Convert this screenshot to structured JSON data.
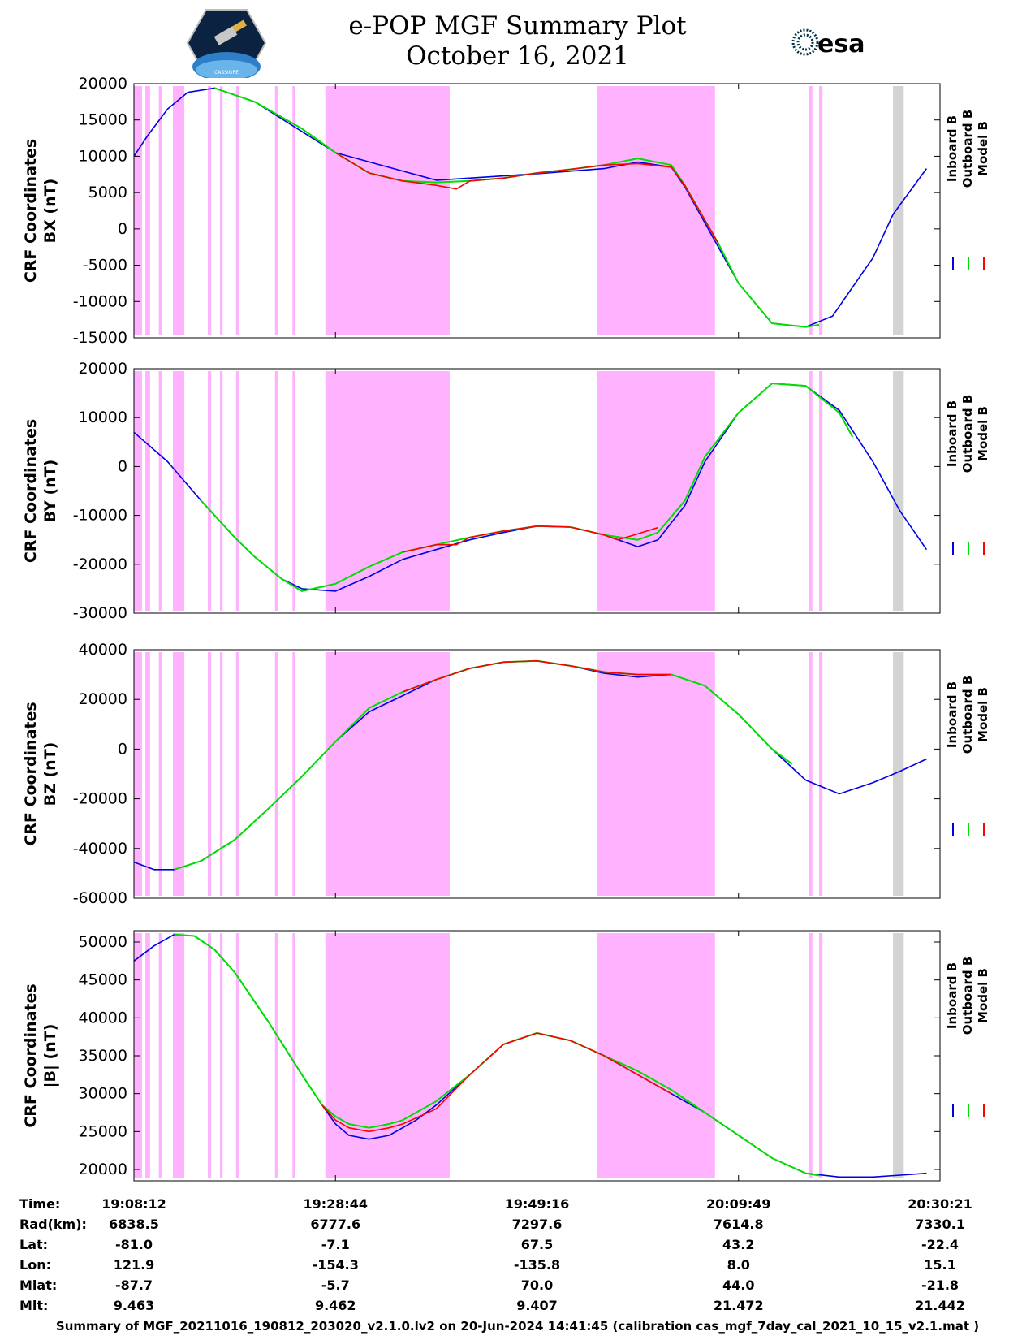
{
  "header": {
    "title_line1": "e-POP MGF Summary Plot",
    "title_line2": "October 16, 2021",
    "logo_left_text": "CASSIOPE",
    "logo_right_text": "esa"
  },
  "legend": {
    "labels": [
      "Inboard B",
      "Outboard B",
      "Model B"
    ],
    "colors": [
      "#0000e6",
      "#00dd00",
      "#ff0000"
    ]
  },
  "colors": {
    "shade_pink": "#ffb3ff",
    "shade_gray": "#d3d3d3",
    "inboard": "#0000e6",
    "outboard": "#00dd00",
    "model": "#ff0000",
    "fit": "#808080"
  },
  "time_ticks": [
    "19:08:12",
    "19:28:44",
    "19:49:16",
    "20:09:49",
    "20:30:21"
  ],
  "chart_data": [
    {
      "type": "line",
      "ylabel": "CRF Coordinates\nBX (nT)",
      "ylim": [
        -15000,
        20000
      ],
      "yticks": [
        20000,
        15000,
        10000,
        5000,
        0,
        -5000,
        -10000,
        -15000
      ],
      "series": [
        {
          "name": "Inboard B",
          "x": [
            0,
            2,
            5,
            8,
            12,
            18,
            30,
            45,
            60,
            70,
            75,
            80,
            82,
            87,
            90,
            95,
            100,
            104,
            110,
            113,
            118
          ],
          "values": [
            10000,
            12800,
            16500,
            18800,
            19400,
            17500,
            10500,
            6700,
            7600,
            8300,
            9200,
            8500,
            5800,
            -2500,
            -7500,
            -13000,
            -13500,
            -12000,
            -4000,
            2000,
            8300
          ]
        },
        {
          "name": "Outboard B",
          "x": [
            12,
            18,
            25,
            30,
            35,
            40,
            45,
            50,
            55,
            60,
            65,
            70,
            75,
            80,
            82,
            87,
            90,
            95,
            100,
            102
          ],
          "values": [
            19400,
            17500,
            13800,
            10500,
            7700,
            6600,
            6400,
            6600,
            7000,
            7700,
            8200,
            8800,
            9700,
            8800,
            6000,
            -2000,
            -7500,
            -13000,
            -13500,
            -13200
          ]
        },
        {
          "name": "Model B",
          "x": [
            30,
            35,
            40,
            45,
            48,
            50,
            55,
            60,
            65,
            70,
            75,
            80,
            82,
            87
          ],
          "values": [
            10500,
            7700,
            6600,
            6000,
            5500,
            6600,
            7000,
            7700,
            8200,
            8800,
            9000,
            8500,
            6000,
            -2000
          ]
        }
      ]
    },
    {
      "type": "line",
      "ylabel": "CRF Coordinates\nBY (nT)",
      "ylim": [
        -30000,
        20000
      ],
      "yticks": [
        20000,
        10000,
        0,
        -10000,
        -20000,
        -30000
      ],
      "series": [
        {
          "name": "Inboard B",
          "x": [
            0,
            5,
            10,
            15,
            18,
            22,
            25,
            30,
            35,
            40,
            45,
            50,
            55,
            60,
            65,
            70,
            75,
            78,
            82,
            85,
            90,
            95,
            100,
            105,
            110,
            114,
            118
          ],
          "values": [
            7000,
            1000,
            -7000,
            -14500,
            -18500,
            -23000,
            -25000,
            -25500,
            -22500,
            -19000,
            -17000,
            -15000,
            -13500,
            -12200,
            -12400,
            -14000,
            -16400,
            -15000,
            -8000,
            1000,
            11000,
            17000,
            16500,
            11500,
            1000,
            -9000,
            -17000
          ]
        },
        {
          "name": "Outboard B",
          "x": [
            10,
            15,
            18,
            22,
            25,
            30,
            35,
            40,
            45,
            50,
            55,
            60,
            65,
            70,
            75,
            78,
            82,
            85,
            90,
            95,
            100,
            105,
            107
          ],
          "values": [
            -7000,
            -14500,
            -18500,
            -23000,
            -25500,
            -24000,
            -20500,
            -17500,
            -16000,
            -14500,
            -13200,
            -12200,
            -12400,
            -14000,
            -15000,
            -13500,
            -7000,
            2000,
            11000,
            17000,
            16500,
            11000,
            6000
          ]
        },
        {
          "name": "Model B",
          "x": [
            40,
            45,
            48,
            50,
            55,
            60,
            65,
            70,
            72,
            74,
            78
          ],
          "values": [
            -17500,
            -16000,
            -16000,
            -14500,
            -13200,
            -12200,
            -12400,
            -14000,
            -15000,
            -14200,
            -12500
          ]
        }
      ]
    },
    {
      "type": "line",
      "ylabel": "CRF Coordinates\nBZ (nT)",
      "ylim": [
        -60000,
        40000
      ],
      "yticks": [
        40000,
        20000,
        0,
        -20000,
        -40000,
        -60000
      ],
      "series": [
        {
          "name": "Inboard B",
          "x": [
            0,
            3,
            6,
            10,
            15,
            20,
            25,
            30,
            35,
            40,
            45,
            50,
            55,
            60,
            65,
            70,
            75,
            80,
            85,
            90,
            95,
            100,
            105,
            110,
            114,
            118
          ],
          "values": [
            -45500,
            -48500,
            -48500,
            -45000,
            -36500,
            -24000,
            -11000,
            3000,
            15000,
            21500,
            28000,
            32500,
            35000,
            35500,
            33500,
            30500,
            29000,
            30000,
            25500,
            14000,
            0,
            -12500,
            -18000,
            -13500,
            -9000,
            -4000
          ]
        },
        {
          "name": "Outboard B",
          "x": [
            6,
            10,
            15,
            20,
            25,
            30,
            35,
            40,
            45,
            50,
            55,
            60,
            65,
            70,
            75,
            80,
            85,
            90,
            95,
            98
          ],
          "values": [
            -48500,
            -45000,
            -36500,
            -24000,
            -11000,
            3000,
            16500,
            23000,
            28000,
            32500,
            35000,
            35500,
            33500,
            31000,
            30000,
            30000,
            25500,
            14000,
            0,
            -6000
          ]
        },
        {
          "name": "Model B",
          "x": [
            40,
            45,
            50,
            55,
            60,
            65,
            70,
            75,
            80
          ],
          "values": [
            23000,
            28000,
            32500,
            35000,
            35500,
            33500,
            31000,
            30000,
            30000
          ]
        }
      ]
    },
    {
      "type": "line",
      "ylabel": "CRF Coordinates\n|B| (nT)",
      "ylim": [
        18500,
        51500
      ],
      "yticks": [
        50000,
        45000,
        40000,
        35000,
        30000,
        25000,
        20000
      ],
      "series": [
        {
          "name": "Inboard B",
          "x": [
            0,
            3,
            6,
            9,
            12,
            15,
            20,
            25,
            28,
            30,
            32,
            35,
            38,
            40,
            42,
            45,
            50,
            55,
            60,
            65,
            70,
            75,
            80,
            85,
            90,
            95,
            100,
            105,
            110,
            115,
            118
          ],
          "values": [
            47500,
            49500,
            51000,
            50800,
            49000,
            46000,
            39500,
            32500,
            28500,
            26000,
            24500,
            24000,
            24500,
            25500,
            26500,
            28500,
            32500,
            36500,
            38000,
            37000,
            35000,
            32500,
            30000,
            27500,
            24500,
            21500,
            19500,
            19000,
            19000,
            19300,
            19500
          ]
        },
        {
          "name": "Outboard B",
          "x": [
            6,
            9,
            12,
            15,
            20,
            25,
            28,
            30,
            32,
            35,
            38,
            40,
            42,
            45,
            50,
            55,
            60,
            65,
            70,
            75,
            80,
            85,
            90,
            95,
            100,
            102
          ],
          "values": [
            51000,
            50800,
            49000,
            46000,
            39500,
            32500,
            28500,
            27000,
            26000,
            25500,
            26000,
            26500,
            27500,
            29000,
            32500,
            36500,
            38000,
            37000,
            35000,
            33000,
            30500,
            27500,
            24500,
            21500,
            19500,
            19200
          ]
        },
        {
          "name": "Model B",
          "x": [
            28,
            30,
            32,
            35,
            38,
            40,
            45,
            50,
            55,
            60,
            65,
            70,
            75,
            80
          ],
          "values": [
            28500,
            26500,
            25500,
            25000,
            25500,
            26000,
            28000,
            32500,
            36500,
            38000,
            37000,
            35000,
            32500,
            30000
          ]
        }
      ]
    }
  ],
  "shading": {
    "pink": [
      [
        0,
        1.2
      ],
      [
        1.7,
        2.4
      ],
      [
        3.7,
        4.2
      ],
      [
        5.8,
        7.5
      ],
      [
        11,
        11.5
      ],
      [
        12.8,
        13.2
      ],
      [
        15.2,
        15.7
      ],
      [
        21,
        21.5
      ],
      [
        23.6,
        24
      ],
      [
        28.5,
        47
      ],
      [
        69,
        86.5
      ],
      [
        100.5,
        101
      ],
      [
        102,
        102.5
      ]
    ],
    "gray": [
      [
        113,
        114.6
      ]
    ]
  },
  "info_table": {
    "row_labels": [
      "Time:",
      "Rad(km):",
      "Lat:",
      "Lon:",
      "Mlat:",
      "Mlt:"
    ],
    "columns": [
      [
        "19:08:12",
        "6838.5",
        "-81.0",
        "121.9",
        "-87.7",
        "9.463"
      ],
      [
        "19:28:44",
        "6777.6",
        "-7.1",
        "-154.3",
        "-5.7",
        "9.462"
      ],
      [
        "19:49:16",
        "7297.6",
        "67.5",
        "-135.8",
        "70.0",
        "9.407"
      ],
      [
        "20:09:49",
        "7614.8",
        "43.2",
        "8.0",
        "44.0",
        "21.472"
      ],
      [
        "20:30:21",
        "7330.1",
        "-22.4",
        "15.1",
        "-21.8",
        "21.442"
      ]
    ]
  },
  "footer": "Summary of MGF_20211016_190812_203020_v2.1.0.lv2 on 20-Jun-2024 14:41:45 (calibration cas_mgf_7day_cal_2021_10_15_v2.1.mat )"
}
